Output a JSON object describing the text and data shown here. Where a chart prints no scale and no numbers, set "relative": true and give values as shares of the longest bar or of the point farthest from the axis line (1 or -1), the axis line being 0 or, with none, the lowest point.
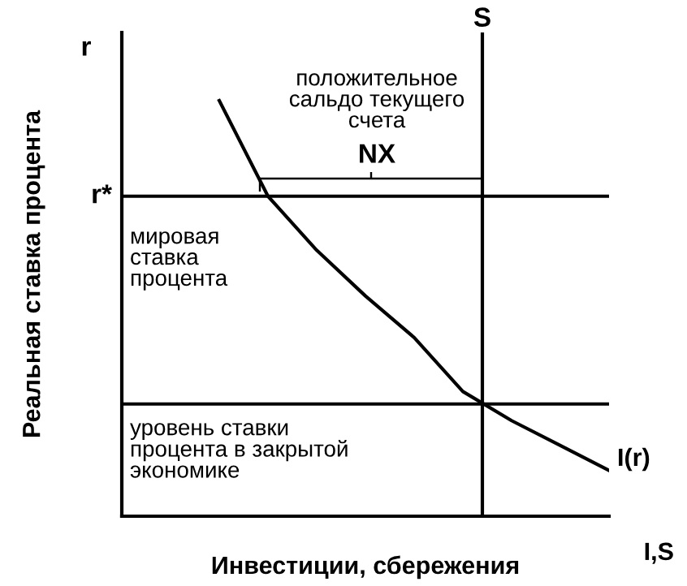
{
  "chart_data": {
    "type": "line",
    "relative": true,
    "ylabel": "Реальная ставка процента",
    "xlabel": "Инвестиции, сбережения",
    "categories": [
      null,
      null,
      null,
      null,
      null,
      null,
      null,
      null,
      null,
      null,
      null
    ],
    "series": [
      {
        "color": "#000000",
        "values": [
          null,
          null,
          1,
          0.77,
          0.64,
          0.53,
          0.43,
          0.3,
          0.23,
          0.17,
          0.11
        ]
      }
    ],
    "ref_lines": [
      {
        "axis": "y",
        "value": 0.77,
        "label": "r*",
        "color": "#000000"
      },
      {
        "axis": "y",
        "value": 0.27,
        "color": "#000000"
      }
    ],
    "annotations": [
      "r",
      "I,S",
      "S",
      "положительное\nсальдо текущего\nсчета",
      "NX",
      "мировая\nставка\nпроцента",
      "уровень ставки\nпроцента в закрытой\nэкономике",
      "I(r)"
    ],
    "grid": false,
    "legend": false,
    "marker": "none",
    "line_style": "solid"
  }
}
